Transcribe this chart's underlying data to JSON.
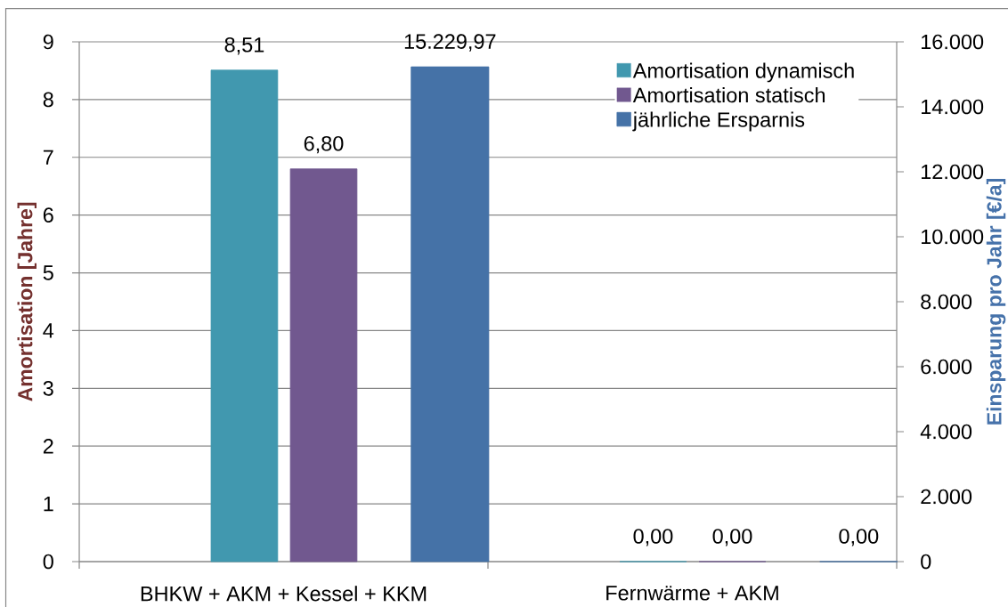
{
  "chart_data": {
    "type": "bar",
    "categories": [
      "BHKW + AKM + Kessel + KKM",
      "Fernwärme + AKM"
    ],
    "series": [
      {
        "name": "Amortisation dynamisch",
        "color": "#4198af",
        "values": [
          8.51,
          0
        ],
        "value_labels": [
          "8,51",
          "0,00"
        ]
      },
      {
        "name": "Amortisation statisch",
        "color": "#71588f",
        "values": [
          6.8,
          0
        ],
        "value_labels": [
          "6,80",
          "0,00"
        ]
      },
      {
        "name": "jährliche Ersparnis",
        "color": "#4572a7",
        "values": [
          15229.97,
          0
        ],
        "value_labels": [
          "15.229,97",
          "0,00"
        ],
        "axis": "y2"
      }
    ],
    "ylabel": "Amortisation [Jahre]",
    "y2label": "Einsparung pro Jahr [€/a]",
    "ylim": [
      0,
      9
    ],
    "yticks": [
      0,
      1,
      2,
      3,
      4,
      5,
      6,
      7,
      8,
      9
    ],
    "y2lim": [
      0,
      16000
    ],
    "y2ticks": [
      {
        "value": 0,
        "label": "0"
      },
      {
        "value": 2000,
        "label": "2.000"
      },
      {
        "value": 4000,
        "label": "4.000"
      },
      {
        "value": 6000,
        "label": "6.000"
      },
      {
        "value": 8000,
        "label": "8.000"
      },
      {
        "value": 10000,
        "label": "10.000"
      },
      {
        "value": 12000,
        "label": "12.000"
      },
      {
        "value": 14000,
        "label": "14.000"
      },
      {
        "value": 16000,
        "label": "16.000"
      }
    ],
    "grid": "y",
    "legend": "top right"
  }
}
